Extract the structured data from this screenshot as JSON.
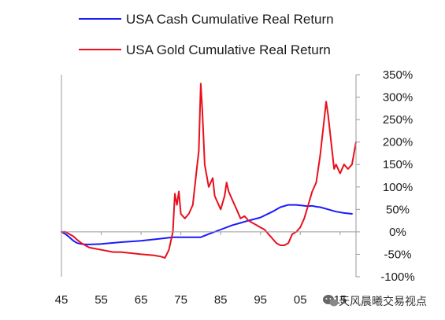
{
  "watermark": {
    "text": "天风晨曦交易视点"
  },
  "colors": {
    "cash": "#1a1aff",
    "gold": "#e8101e",
    "axis": "#9a9a9a"
  },
  "chart_data": {
    "type": "line",
    "title": "",
    "xlabel": "",
    "ylabel": "",
    "legend_position": "top-left",
    "grid": false,
    "x_tick_labels": [
      "45",
      "55",
      "65",
      "75",
      "85",
      "95",
      "05",
      "15"
    ],
    "x_tick_years": [
      1945,
      1955,
      1965,
      1975,
      1985,
      1995,
      2005,
      2015
    ],
    "xlim": [
      1945,
      2019
    ],
    "y_tick_labels": [
      "350%",
      "300%",
      "250%",
      "200%",
      "150%",
      "100%",
      "50%",
      "0%",
      "-50%",
      "-100%"
    ],
    "y_tick_values": [
      350,
      300,
      250,
      200,
      150,
      100,
      50,
      0,
      -50,
      -100
    ],
    "ylim": [
      -100,
      350
    ],
    "y_unit": "%",
    "series": [
      {
        "name": "USA Cash Cumulative Real Return",
        "color": "#1a1aff",
        "x": [
          1945,
          1946,
          1947,
          1948,
          1949,
          1950,
          1951,
          1952,
          1955,
          1960,
          1965,
          1970,
          1973,
          1975,
          1978,
          1980,
          1982,
          1985,
          1988,
          1990,
          1992,
          1995,
          1998,
          2000,
          2002,
          2004,
          2006,
          2007,
          2008,
          2009,
          2010,
          2012,
          2014,
          2016,
          2018
        ],
        "y": [
          0,
          -5,
          -12,
          -20,
          -25,
          -27,
          -28,
          -28,
          -27,
          -23,
          -20,
          -15,
          -12,
          -12,
          -12,
          -12,
          -5,
          5,
          15,
          20,
          25,
          32,
          45,
          55,
          60,
          60,
          58,
          57,
          58,
          56,
          55,
          50,
          45,
          42,
          40
        ]
      },
      {
        "name": "USA Gold Cumulative Real Return",
        "color": "#e8101e",
        "x": [
          1945,
          1946,
          1947,
          1948,
          1949,
          1950,
          1951,
          1952,
          1955,
          1958,
          1960,
          1963,
          1965,
          1968,
          1970,
          1971,
          1972,
          1973,
          1973.5,
          1974,
          1974.5,
          1975,
          1976,
          1977,
          1978,
          1979,
          1979.5,
          1980,
          1980.4,
          1981,
          1982,
          1983,
          1983.5,
          1984,
          1985,
          1986,
          1986.5,
          1987,
          1988,
          1989,
          1990,
          1991,
          1992,
          1993,
          1994,
          1995,
          1996,
          1997,
          1998,
          1999,
          2000,
          2001,
          2002,
          2003,
          2004,
          2005,
          2006,
          2007,
          2008,
          2009,
          2010,
          2011,
          2011.5,
          2012,
          2013,
          2013.5,
          2014,
          2015,
          2016,
          2017,
          2018,
          2019
        ],
        "y": [
          0,
          0,
          -5,
          -10,
          -18,
          -25,
          -30,
          -35,
          -40,
          -45,
          -45,
          -48,
          -50,
          -52,
          -55,
          -58,
          -40,
          0,
          85,
          60,
          90,
          40,
          30,
          40,
          60,
          140,
          180,
          330,
          270,
          150,
          100,
          120,
          80,
          70,
          50,
          80,
          110,
          90,
          70,
          50,
          30,
          35,
          25,
          20,
          15,
          10,
          5,
          -5,
          -15,
          -25,
          -30,
          -30,
          -25,
          -5,
          0,
          10,
          30,
          60,
          90,
          110,
          170,
          250,
          290,
          260,
          180,
          140,
          150,
          130,
          150,
          140,
          150,
          200
        ]
      }
    ]
  }
}
